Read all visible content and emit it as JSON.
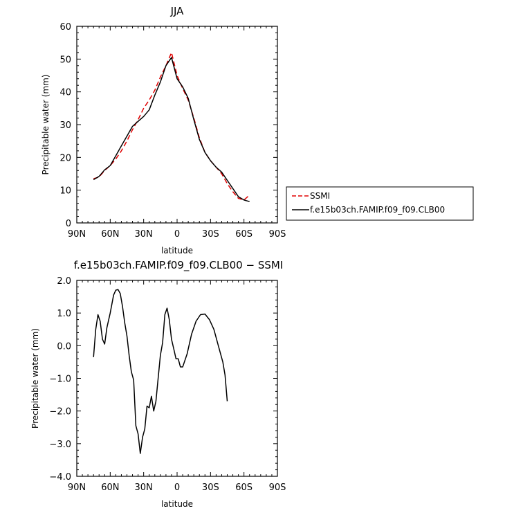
{
  "chart_data": [
    {
      "type": "line",
      "title": "JJA",
      "xlabel": "latitude",
      "ylabel": "Precipitable water (mm)",
      "xlim": [
        90,
        -90
      ],
      "ylim": [
        0,
        60
      ],
      "x_ticks": [
        90,
        60,
        30,
        0,
        -30,
        -60,
        -90
      ],
      "x_tick_labels": [
        "90N",
        "60N",
        "30N",
        "0",
        "30S",
        "60S",
        "90S"
      ],
      "y_ticks": [
        0,
        10,
        20,
        30,
        40,
        50,
        60
      ],
      "y_tick_labels": [
        "0",
        "10",
        "20",
        "30",
        "40",
        "50",
        "60"
      ],
      "legend": "right, outside plot",
      "series": [
        {
          "name": "SSMI",
          "color": "#e00000",
          "dash": "dashed",
          "points": [
            [
              75,
              13.5
            ],
            [
              70,
              14.0
            ],
            [
              65,
              16.0
            ],
            [
              60,
              17.5
            ],
            [
              55,
              19.5
            ],
            [
              50,
              22.0
            ],
            [
              45,
              25.0
            ],
            [
              40,
              28.5
            ],
            [
              35,
              31.5
            ],
            [
              30,
              35.0
            ],
            [
              25,
              37.5
            ],
            [
              20,
              40.5
            ],
            [
              15,
              44.5
            ],
            [
              10,
              48.0
            ],
            [
              5,
              52.0
            ],
            [
              0,
              45.0
            ],
            [
              -5,
              41.0
            ],
            [
              -10,
              37.5
            ],
            [
              -15,
              32.0
            ],
            [
              -20,
              26.0
            ],
            [
              -25,
              21.5
            ],
            [
              -30,
              19.0
            ],
            [
              -35,
              17.0
            ],
            [
              -40,
              15.0
            ],
            [
              -45,
              12.0
            ],
            [
              -50,
              9.5
            ],
            [
              -55,
              7.5
            ],
            [
              -60,
              7.0
            ],
            [
              -65,
              8.5
            ]
          ]
        },
        {
          "name": "f.e15b03ch.FAMIP.f09_f09.CLB00",
          "color": "#000000",
          "dash": "solid",
          "points": [
            [
              75,
              13.2
            ],
            [
              70,
              14.2
            ],
            [
              65,
              16.2
            ],
            [
              60,
              17.5
            ],
            [
              55,
              20.5
            ],
            [
              50,
              23.5
            ],
            [
              45,
              26.5
            ],
            [
              40,
              29.5
            ],
            [
              35,
              31.0
            ],
            [
              30,
              32.5
            ],
            [
              25,
              34.5
            ],
            [
              20,
              39.0
            ],
            [
              15,
              43.0
            ],
            [
              10,
              48.0
            ],
            [
              5,
              50.5
            ],
            [
              0,
              44.0
            ],
            [
              -5,
              41.5
            ],
            [
              -10,
              38.0
            ],
            [
              -15,
              31.5
            ],
            [
              -20,
              25.5
            ],
            [
              -25,
              21.5
            ],
            [
              -30,
              19.0
            ],
            [
              -35,
              17.0
            ],
            [
              -40,
              15.5
            ],
            [
              -45,
              13.0
            ],
            [
              -50,
              10.5
            ],
            [
              -55,
              8.0
            ],
            [
              -60,
              7.0
            ],
            [
              -65,
              6.5
            ]
          ]
        }
      ]
    },
    {
      "type": "line",
      "title": "f.e15b03ch.FAMIP.f09_f09.CLB00 − SSMI",
      "xlabel": "latitude",
      "ylabel": "Precipitable water (mm)",
      "xlim": [
        90,
        -90
      ],
      "ylim": [
        -4.0,
        2.0
      ],
      "x_ticks": [
        90,
        60,
        30,
        0,
        -30,
        -60,
        -90
      ],
      "x_tick_labels": [
        "90N",
        "60N",
        "30N",
        "0",
        "30S",
        "60S",
        "90S"
      ],
      "y_ticks": [
        -4,
        -3,
        -2,
        -1,
        0,
        1,
        2
      ],
      "y_tick_labels": [
        "−4.0",
        "−3.0",
        "−2.0",
        "−1.0",
        "0.0",
        "1.0",
        "2.0"
      ],
      "series": [
        {
          "color": "#000000",
          "dash": "solid",
          "points": [
            [
              75,
              -0.35
            ],
            [
              73,
              0.5
            ],
            [
              71,
              0.95
            ],
            [
              69,
              0.75
            ],
            [
              67,
              0.2
            ],
            [
              65,
              0.05
            ],
            [
              63,
              0.55
            ],
            [
              60,
              1.0
            ],
            [
              57,
              1.55
            ],
            [
              55,
              1.7
            ],
            [
              53,
              1.72
            ],
            [
              51,
              1.6
            ],
            [
              49,
              1.2
            ],
            [
              47,
              0.7
            ],
            [
              45,
              0.3
            ],
            [
              43,
              -0.3
            ],
            [
              41,
              -0.8
            ],
            [
              39,
              -1.05
            ],
            [
              37,
              -2.45
            ],
            [
              35,
              -2.7
            ],
            [
              33,
              -3.3
            ],
            [
              31,
              -2.8
            ],
            [
              29,
              -2.55
            ],
            [
              27,
              -1.85
            ],
            [
              25,
              -1.9
            ],
            [
              23,
              -1.55
            ],
            [
              21,
              -2.0
            ],
            [
              19,
              -1.7
            ],
            [
              17,
              -1.0
            ],
            [
              15,
              -0.3
            ],
            [
              13,
              0.1
            ],
            [
              11,
              0.95
            ],
            [
              9,
              1.15
            ],
            [
              7,
              0.8
            ],
            [
              5,
              0.2
            ],
            [
              3,
              -0.1
            ],
            [
              1,
              -0.4
            ],
            [
              -1,
              -0.4
            ],
            [
              -3,
              -0.65
            ],
            [
              -5,
              -0.65
            ],
            [
              -9,
              -0.25
            ],
            [
              -13,
              0.35
            ],
            [
              -17,
              0.75
            ],
            [
              -21,
              0.95
            ],
            [
              -25,
              0.97
            ],
            [
              -29,
              0.8
            ],
            [
              -33,
              0.5
            ],
            [
              -37,
              0.0
            ],
            [
              -41,
              -0.5
            ],
            [
              -43,
              -0.9
            ],
            [
              -45,
              -1.7
            ]
          ]
        }
      ]
    }
  ]
}
